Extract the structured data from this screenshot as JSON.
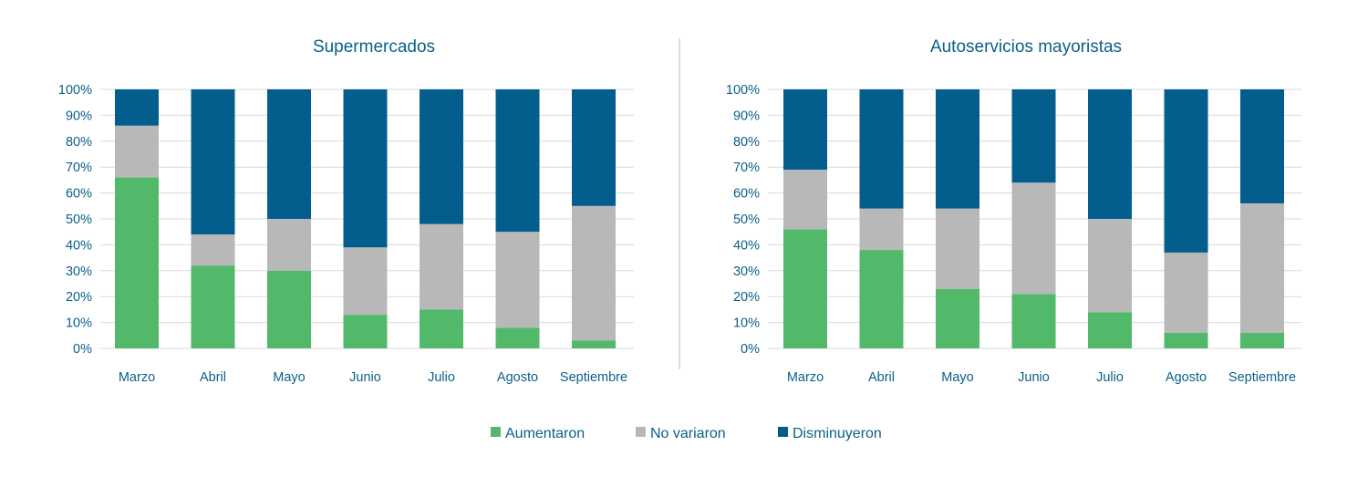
{
  "legend": [
    {
      "label": "Aumentaron",
      "color": "#52b96a"
    },
    {
      "label": "No variaron",
      "color": "#b8b8b8"
    },
    {
      "label": "Disminuyeron",
      "color": "#035e8d"
    }
  ],
  "chart_data": [
    {
      "type": "bar",
      "stacked": true,
      "title": "Supermercados",
      "categories": [
        "Marzo",
        "Abril",
        "Mayo",
        "Junio",
        "Julio",
        "Agosto",
        "Septiembre"
      ],
      "ylim": [
        0,
        100
      ],
      "yticks": [
        "0%",
        "10%",
        "20%",
        "30%",
        "40%",
        "50%",
        "60%",
        "70%",
        "80%",
        "90%",
        "100%"
      ],
      "grid": true,
      "series": [
        {
          "name": "Aumentaron",
          "values": [
            66,
            32,
            30,
            13,
            15,
            8,
            3
          ]
        },
        {
          "name": "No variaron",
          "values": [
            20,
            12,
            20,
            26,
            33,
            37,
            52
          ]
        },
        {
          "name": "Disminuyeron",
          "values": [
            14,
            56,
            50,
            61,
            52,
            55,
            45
          ]
        }
      ]
    },
    {
      "type": "bar",
      "stacked": true,
      "title": "Autoservicios mayoristas",
      "categories": [
        "Marzo",
        "Abril",
        "Mayo",
        "Junio",
        "Julio",
        "Agosto",
        "Septiembre"
      ],
      "ylim": [
        0,
        100
      ],
      "yticks": [
        "0%",
        "10%",
        "20%",
        "30%",
        "40%",
        "50%",
        "60%",
        "70%",
        "80%",
        "90%",
        "100%"
      ],
      "grid": true,
      "series": [
        {
          "name": "Aumentaron",
          "values": [
            46,
            38,
            23,
            21,
            14,
            6,
            6
          ]
        },
        {
          "name": "No variaron",
          "values": [
            23,
            16,
            31,
            43,
            36,
            31,
            50
          ]
        },
        {
          "name": "Disminuyeron",
          "values": [
            31,
            46,
            46,
            36,
            50,
            63,
            44
          ]
        }
      ]
    }
  ]
}
